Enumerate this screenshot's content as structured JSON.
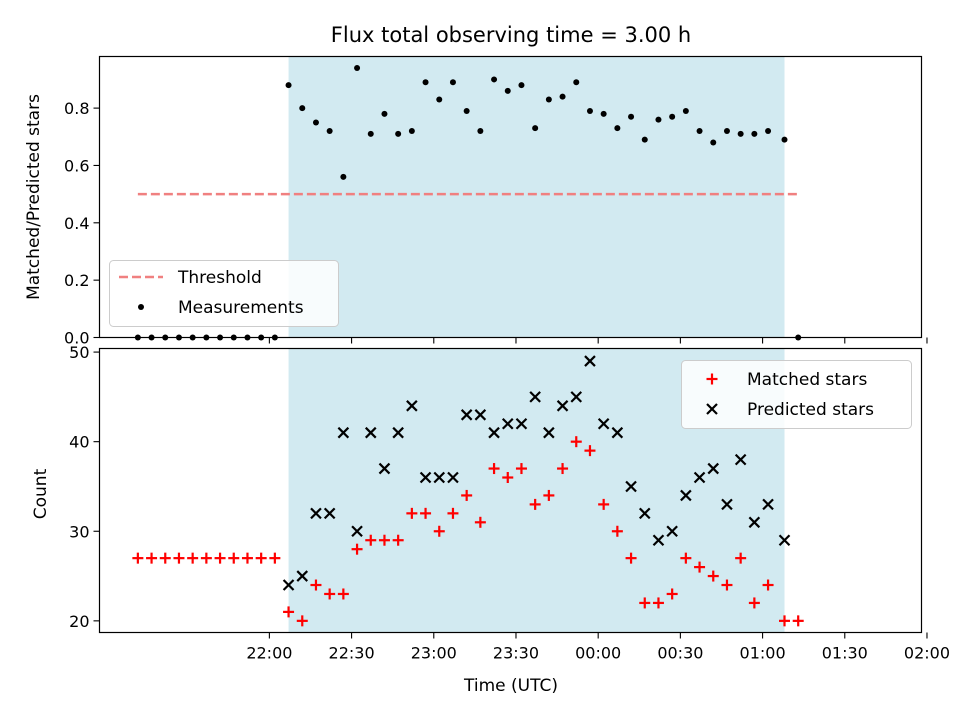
{
  "figure_title": "Flux total observing time = 3.00 h",
  "colors": {
    "shade": "#add8e6",
    "threshold": "#f08080",
    "measurement": "#000000",
    "matched": "#ff0000",
    "predicted": "#000000"
  },
  "chart_data": [
    {
      "type": "scatter",
      "ylabel": "Matched/Predicted stars",
      "ylim": [
        0,
        0.98
      ],
      "yticks": [
        0.0,
        0.2,
        0.4,
        0.6,
        0.8
      ],
      "ytick_labels": [
        "0.0",
        "0.2",
        "0.4",
        "0.6",
        "0.8"
      ],
      "x_unit": "minutes after 21:00 UTC",
      "xlim": [
        -2,
        298
      ],
      "shaded_span": [
        67,
        248
      ],
      "legend": {
        "position": "lower-left",
        "entries": [
          "Threshold",
          "Measurements"
        ]
      },
      "threshold": {
        "name": "Threshold",
        "x": [
          12,
          253
        ],
        "y": 0.5
      },
      "series": [
        {
          "name": "Measurements",
          "x": [
            12,
            17,
            22,
            27,
            32,
            37,
            42,
            47,
            52,
            57,
            62,
            67,
            72,
            77,
            82,
            87,
            92,
            97,
            102,
            107,
            112,
            117,
            122,
            127,
            132,
            137,
            142,
            147,
            152,
            157,
            162,
            167,
            172,
            177,
            182,
            187,
            192,
            197,
            202,
            207,
            212,
            217,
            222,
            227,
            232,
            237,
            242,
            248,
            253
          ],
          "y": [
            0,
            0,
            0,
            0,
            0,
            0,
            0,
            0,
            0,
            0,
            0,
            0.88,
            0.8,
            0.75,
            0.72,
            0.56,
            0.94,
            0.71,
            0.78,
            0.71,
            0.72,
            0.89,
            0.83,
            0.89,
            0.79,
            0.72,
            0.9,
            0.86,
            0.88,
            0.73,
            0.83,
            0.84,
            0.89,
            0.79,
            0.78,
            0.73,
            0.77,
            0.69,
            0.76,
            0.77,
            0.79,
            0.72,
            0.68,
            0.72,
            0.71,
            0.71,
            0.72,
            0.69,
            0.0
          ]
        }
      ]
    },
    {
      "type": "scatter",
      "ylabel": "Count",
      "xlabel": "Time (UTC)",
      "ylim": [
        18.7,
        50.4
      ],
      "yticks": [
        20,
        30,
        40,
        50
      ],
      "ytick_labels": [
        "20",
        "30",
        "40",
        "50"
      ],
      "x_unit": "minutes after 21:00 UTC",
      "xlim": [
        -2,
        298
      ],
      "xticks": [
        60,
        90,
        120,
        150,
        180,
        210,
        240,
        270,
        300
      ],
      "xtick_labels": [
        "22:00",
        "22:30",
        "23:00",
        "23:30",
        "00:00",
        "00:30",
        "01:00",
        "01:30",
        "02:00"
      ],
      "shaded_span": [
        67,
        248
      ],
      "legend": {
        "position": "upper-right",
        "entries": [
          "Matched stars",
          "Predicted stars"
        ]
      },
      "series": [
        {
          "name": "Matched stars",
          "x": [
            12,
            17,
            22,
            27,
            32,
            37,
            42,
            47,
            52,
            57,
            62,
            67,
            72,
            77,
            82,
            87,
            92,
            97,
            102,
            107,
            112,
            117,
            122,
            127,
            132,
            137,
            142,
            147,
            152,
            157,
            162,
            167,
            172,
            177,
            182,
            187,
            192,
            197,
            202,
            207,
            212,
            217,
            222,
            227,
            232,
            237,
            242,
            248,
            253
          ],
          "y": [
            27,
            27,
            27,
            27,
            27,
            27,
            27,
            27,
            27,
            27,
            27,
            21,
            20,
            24,
            23,
            23,
            28,
            29,
            29,
            29,
            32,
            32,
            30,
            32,
            34,
            31,
            37,
            36,
            37,
            33,
            34,
            37,
            40,
            39,
            33,
            30,
            27,
            22,
            22,
            23,
            27,
            26,
            25,
            24,
            27,
            22,
            24,
            20,
            20
          ]
        },
        {
          "name": "Predicted stars",
          "x": [
            67,
            72,
            77,
            82,
            87,
            92,
            97,
            102,
            107,
            112,
            117,
            122,
            127,
            132,
            137,
            142,
            147,
            152,
            157,
            162,
            167,
            172,
            177,
            182,
            187,
            192,
            197,
            202,
            207,
            212,
            217,
            222,
            227,
            232,
            237,
            242,
            248
          ],
          "y": [
            24,
            25,
            32,
            32,
            41,
            30,
            41,
            37,
            41,
            44,
            36,
            36,
            36,
            43,
            43,
            41,
            42,
            42,
            45,
            41,
            44,
            45,
            49,
            42,
            41,
            35,
            32,
            29,
            30,
            34,
            36,
            37,
            33,
            38,
            31,
            33,
            29
          ]
        }
      ]
    }
  ]
}
